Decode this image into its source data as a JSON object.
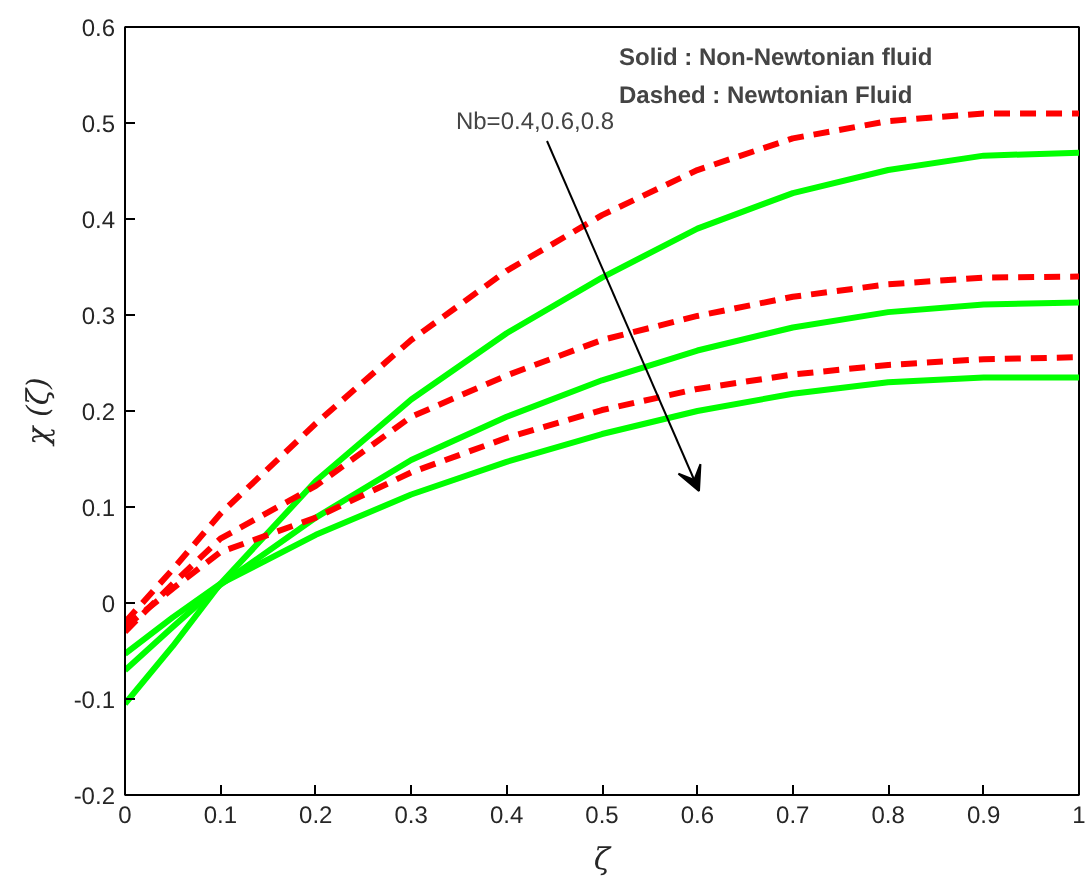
{
  "chart_data": {
    "type": "line",
    "xlabel": "ζ",
    "ylabel": "χ (ζ)",
    "x": [
      0,
      0.05,
      0.1,
      0.2,
      0.3,
      0.4,
      0.5,
      0.6,
      0.7,
      0.8,
      0.9,
      1
    ],
    "series": [
      {
        "color": "#00ff00",
        "line_style": "solid",
        "values": [
          -0.105,
          -0.045,
          0.02,
          0.127,
          0.212,
          0.281,
          0.339,
          0.39,
          0.427,
          0.451,
          0.466,
          0.469
        ]
      },
      {
        "color": "#00ff00",
        "line_style": "solid",
        "values": [
          -0.07,
          -0.025,
          0.019,
          0.089,
          0.149,
          0.194,
          0.232,
          0.263,
          0.287,
          0.303,
          0.311,
          0.313
        ]
      },
      {
        "color": "#00ff00",
        "line_style": "solid",
        "values": [
          -0.053,
          -0.015,
          0.02,
          0.071,
          0.113,
          0.147,
          0.176,
          0.2,
          0.218,
          0.23,
          0.235,
          0.235
        ]
      },
      {
        "color": "#ff0000",
        "line_style": "dashed",
        "values": [
          -0.02,
          0.035,
          0.093,
          0.187,
          0.274,
          0.346,
          0.404,
          0.451,
          0.484,
          0.502,
          0.51,
          0.51
        ]
      },
      {
        "color": "#ff0000",
        "line_style": "dashed",
        "values": [
          -0.03,
          0.02,
          0.067,
          0.122,
          0.194,
          0.237,
          0.274,
          0.299,
          0.319,
          0.332,
          0.339,
          0.34
        ]
      },
      {
        "color": "#ff0000",
        "line_style": "dashed",
        "values": [
          -0.025,
          0.015,
          0.053,
          0.089,
          0.136,
          0.172,
          0.201,
          0.223,
          0.238,
          0.248,
          0.254,
          0.256
        ]
      }
    ],
    "xlim": [
      0,
      1
    ],
    "ylim": [
      -0.2,
      0.6
    ],
    "xticks": [
      0,
      0.1,
      0.2,
      0.3,
      0.4,
      0.5,
      0.6,
      0.7,
      0.8,
      0.9,
      1
    ],
    "yticks": [
      -0.2,
      -0.1,
      0,
      0.1,
      0.2,
      0.3,
      0.4,
      0.5,
      0.6
    ],
    "grid": false,
    "marker": "none",
    "annotations": [
      "Solid : Non-Newtonian fluid",
      "Dashed : Newtonian Fluid",
      "Nb=0.4,0.6,0.8"
    ]
  }
}
